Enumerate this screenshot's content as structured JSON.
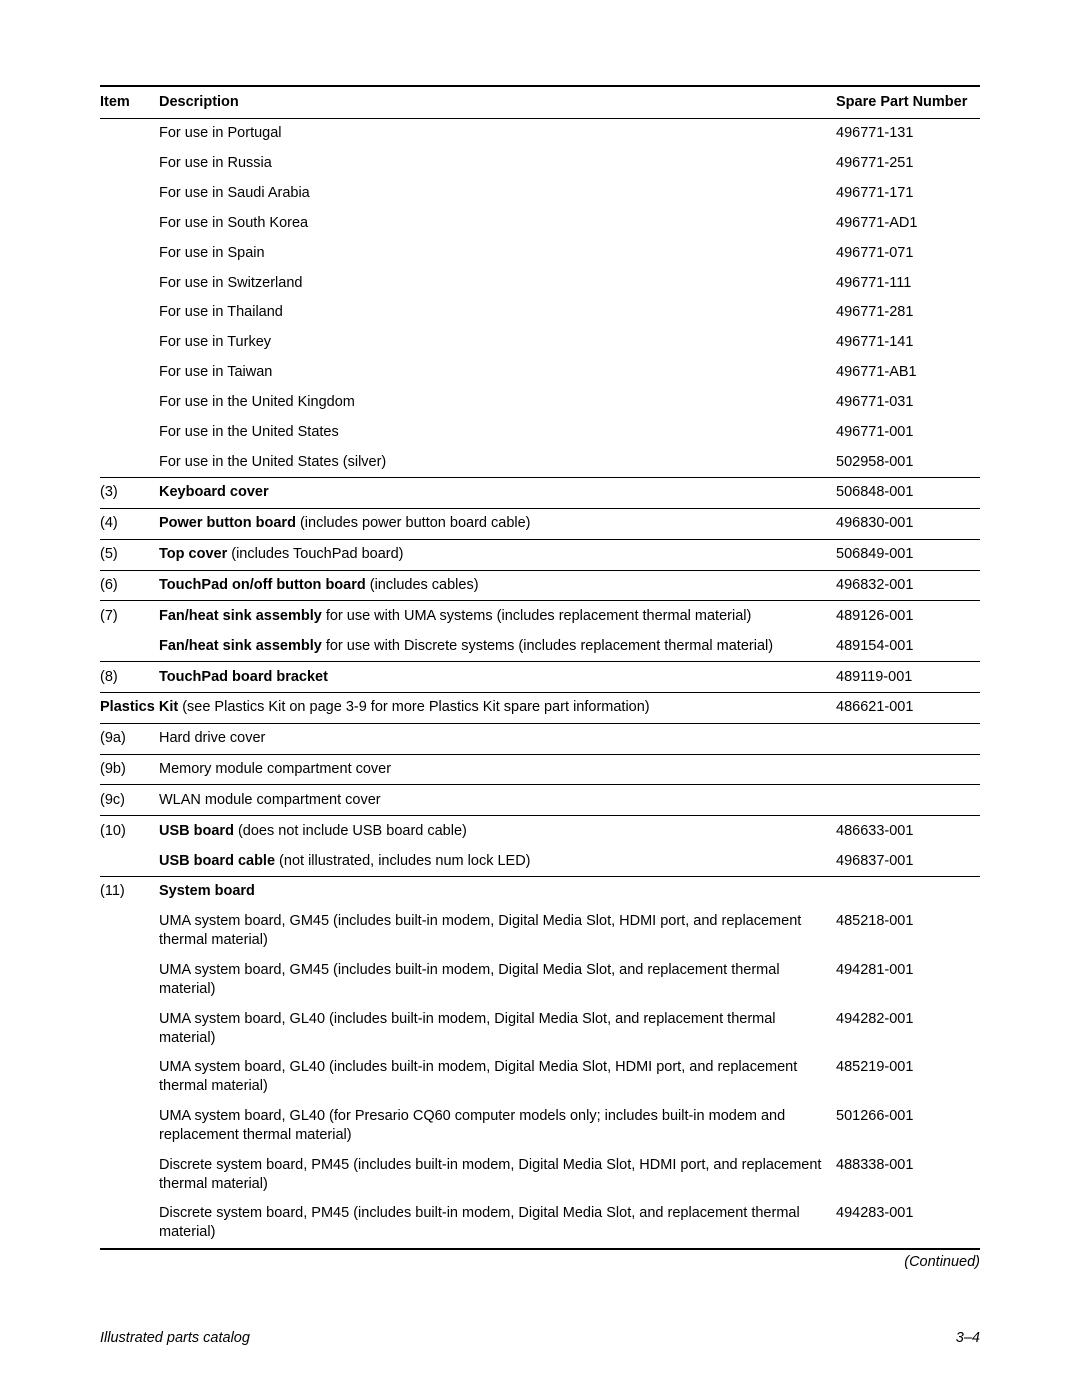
{
  "header": {
    "item": "Item",
    "description": "Description",
    "part": "Spare Part Number"
  },
  "rows": [
    {
      "item": "",
      "desc": "For use in Portugal",
      "part": "496771-131",
      "sep": false
    },
    {
      "item": "",
      "desc": "For use in Russia",
      "part": "496771-251",
      "sep": false
    },
    {
      "item": "",
      "desc": "For use in Saudi Arabia",
      "part": "496771-171",
      "sep": false
    },
    {
      "item": "",
      "desc": "For use in South Korea",
      "part": "496771-AD1",
      "sep": false
    },
    {
      "item": "",
      "desc": "For use in Spain",
      "part": "496771-071",
      "sep": false
    },
    {
      "item": "",
      "desc": "For use in Switzerland",
      "part": "496771-111",
      "sep": false
    },
    {
      "item": "",
      "desc": "For use in Thailand",
      "part": "496771-281",
      "sep": false
    },
    {
      "item": "",
      "desc": "For use in Turkey",
      "part": "496771-141",
      "sep": false
    },
    {
      "item": "",
      "desc": "For use in Taiwan",
      "part": "496771-AB1",
      "sep": false
    },
    {
      "item": "",
      "desc": "For use in the United Kingdom",
      "part": "496771-031",
      "sep": false
    },
    {
      "item": "",
      "desc": "For use in the United States",
      "part": "496771-001",
      "sep": false
    },
    {
      "item": "",
      "desc": "For use in the United States (silver)",
      "part": "502958-001",
      "sep": true
    },
    {
      "item": "(3)",
      "bold": "Keyboard cover",
      "tail": "",
      "part": "506848-001",
      "sep": true
    },
    {
      "item": "(4)",
      "bold": "Power button board",
      "tail": " (includes power button board cable)",
      "part": "496830-001",
      "sep": true
    },
    {
      "item": "(5)",
      "bold": "Top cover",
      "tail": " (includes TouchPad board)",
      "part": "506849-001",
      "sep": true
    },
    {
      "item": "(6)",
      "bold": "TouchPad on/off button board",
      "tail": " (includes cables)",
      "part": "496832-001",
      "sep": true
    },
    {
      "item": "(7)",
      "bold": "Fan/heat sink assembly",
      "tail": " for use with UMA systems (includes replacement thermal material)",
      "part": "489126-001",
      "sep": false
    },
    {
      "item": "",
      "bold": "Fan/heat sink assembly",
      "tail": " for use with Discrete systems (includes replacement thermal material)",
      "part": "489154-001",
      "sep": true
    },
    {
      "item": "(8)",
      "bold": "TouchPad board bracket",
      "tail": "",
      "part": "489119-001",
      "sep": true
    },
    {
      "item": "",
      "span": true,
      "bold": "Plastics Kit",
      "tail": " (see Plastics Kit on page 3-9 for more Plastics Kit spare part information)",
      "part": "486621-001",
      "sep": true
    },
    {
      "item": "(9a)",
      "desc": "Hard drive cover",
      "part": "",
      "sep": true
    },
    {
      "item": "(9b)",
      "desc": "Memory module compartment cover",
      "part": "",
      "sep": true
    },
    {
      "item": "(9c)",
      "desc": "WLAN module compartment cover",
      "part": "",
      "sep": true
    },
    {
      "item": "(10)",
      "bold": "USB board",
      "tail": " (does not include USB board cable)",
      "part": "486633-001",
      "sep": false
    },
    {
      "item": "",
      "bold": "USB board cable",
      "tail": " (not illustrated, includes num lock LED)",
      "part": "496837-001",
      "sep": true
    },
    {
      "item": "(11)",
      "bold": "System board",
      "tail": "",
      "part": "",
      "sep": false
    },
    {
      "item": "",
      "desc": "UMA system board, GM45 (includes built-in modem, Digital Media Slot, HDMI port, and replacement thermal material)",
      "part": "485218-001",
      "sep": false
    },
    {
      "item": "",
      "desc": "UMA system board, GM45 (includes built-in modem, Digital Media Slot, and replacement thermal material)",
      "part": "494281-001",
      "sep": false
    },
    {
      "item": "",
      "desc": "UMA system board, GL40 (includes built-in modem, Digital Media Slot, and replacement thermal material)",
      "part": "494282-001",
      "sep": false
    },
    {
      "item": "",
      "desc": "UMA system board, GL40 (includes built-in modem, Digital Media Slot, HDMI port, and replacement thermal material)",
      "part": "485219-001",
      "sep": false
    },
    {
      "item": "",
      "desc": "UMA system board, GL40 (for Presario CQ60 computer models only; includes built-in modem and replacement thermal material)",
      "part": "501266-001",
      "sep": false
    },
    {
      "item": "",
      "desc": "Discrete system board, PM45 (includes built-in modem, Digital Media Slot, HDMI port, and replacement thermal material)",
      "part": "488338-001",
      "sep": false
    },
    {
      "item": "",
      "desc": "Discrete system board, PM45 (includes built-in modem, Digital Media Slot, and replacement thermal material)",
      "part": "494283-001",
      "sep": false,
      "end": true
    }
  ],
  "continued": "(Continued)",
  "footer": {
    "left": "Illustrated parts catalog",
    "right": "3–4"
  }
}
